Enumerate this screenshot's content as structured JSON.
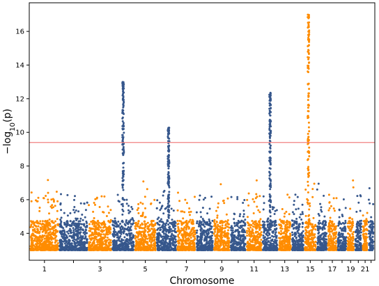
{
  "chart_data": {
    "type": "scatter",
    "subtype": "manhattan",
    "title": "",
    "xlabel": "Chromosome",
    "ylabel": "−log₁₀(p)",
    "ylim": [
      2.4,
      17.7
    ],
    "yticks": [
      4,
      6,
      8,
      10,
      12,
      14,
      16
    ],
    "significance_threshold": 9.4,
    "threshold_color": "#f08080",
    "grid": false,
    "legend": "none",
    "colors": {
      "odd": "#ff8c00",
      "even": "#36578c"
    },
    "chromosomes": [
      {
        "chr": "1",
        "label": "1",
        "color": "odd"
      },
      {
        "chr": "2",
        "label": "",
        "color": "even"
      },
      {
        "chr": "3",
        "label": "3",
        "color": "odd"
      },
      {
        "chr": "4",
        "label": "",
        "color": "even"
      },
      {
        "chr": "5",
        "label": "5",
        "color": "odd"
      },
      {
        "chr": "6",
        "label": "",
        "color": "even"
      },
      {
        "chr": "7",
        "label": "7",
        "color": "odd"
      },
      {
        "chr": "8",
        "label": "",
        "color": "even"
      },
      {
        "chr": "9",
        "label": "9",
        "color": "odd"
      },
      {
        "chr": "10",
        "label": "",
        "color": "even"
      },
      {
        "chr": "11",
        "label": "11",
        "color": "odd"
      },
      {
        "chr": "12",
        "label": "",
        "color": "even"
      },
      {
        "chr": "13",
        "label": "13",
        "color": "odd"
      },
      {
        "chr": "14",
        "label": "",
        "color": "even"
      },
      {
        "chr": "15",
        "label": "15",
        "color": "odd"
      },
      {
        "chr": "16",
        "label": "",
        "color": "even"
      },
      {
        "chr": "17",
        "label": "17",
        "color": "odd"
      },
      {
        "chr": "18",
        "label": "",
        "color": "even"
      },
      {
        "chr": "19",
        "label": "19",
        "color": "odd"
      },
      {
        "chr": "20",
        "label": "",
        "color": "even"
      },
      {
        "chr": "21",
        "label": "21",
        "color": "odd"
      },
      {
        "chr": "22",
        "label": "",
        "color": "even"
      }
    ],
    "peaks": [
      {
        "chr": "4",
        "max": 13.0
      },
      {
        "chr": "6",
        "max": 10.3
      },
      {
        "chr": "12",
        "max": 12.4
      },
      {
        "chr": "15",
        "max": 17.0
      }
    ]
  }
}
